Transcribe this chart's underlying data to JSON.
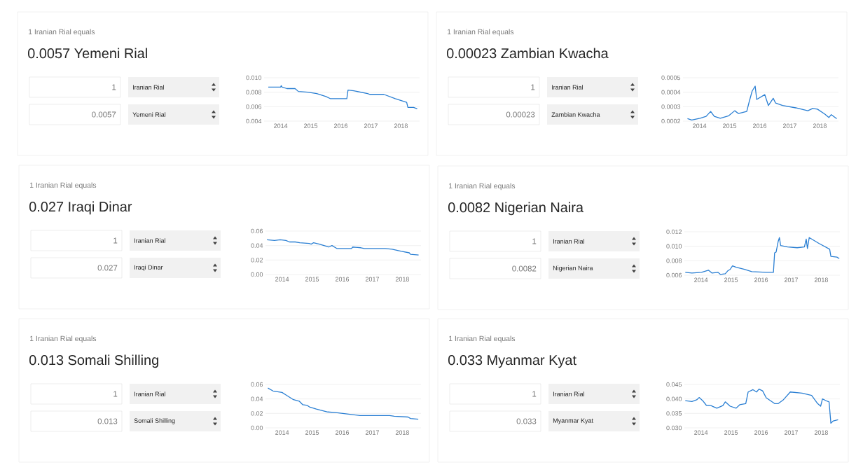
{
  "chart_data": [
    {
      "type": "line",
      "annotations": [
        "1 Iranian Rial equals",
        "0.0057 Yemeni Rial",
        "1",
        "Iranian Rial",
        "0.0057",
        "Yemeni Rial"
      ],
      "color": "#2a7fd3",
      "grid": "y",
      "xlim": [
        2013.45,
        2018.62
      ],
      "ylim": [
        0.004,
        0.01
      ],
      "xticks": [
        2014,
        2015,
        2016,
        2017,
        2018
      ],
      "yticks": [
        0.004,
        0.006,
        0.008,
        {
          "value": 0.01,
          "label": "0.010"
        }
      ],
      "x": [
        2013.59,
        2014.0,
        2014.02,
        2014.05,
        2014.21,
        2014.48,
        2014.59,
        2014.9,
        2015.2,
        2015.51,
        2015.66,
        2016.2,
        2016.24,
        2016.43,
        2016.89,
        2016.97,
        2017.43,
        2017.81,
        2018.19,
        2018.23,
        2018.42,
        2018.54
      ],
      "values": [
        0.0087,
        0.0087,
        0.0089,
        0.0087,
        0.0085,
        0.0085,
        0.0081,
        0.008,
        0.0078,
        0.0074,
        0.0071,
        0.0071,
        0.0083,
        0.0082,
        0.0078,
        0.0077,
        0.0077,
        0.0071,
        0.0066,
        0.0059,
        0.0059,
        0.0057
      ]
    },
    {
      "type": "line",
      "annotations": [
        "1 Iranian Rial equals",
        "0.00023 Zambian Kwacha",
        "1",
        "Iranian Rial",
        "0.00023",
        "Zambian Kwacha"
      ],
      "color": "#2a7fd3",
      "grid": "y",
      "xlim": [
        2013.45,
        2018.62
      ],
      "ylim": [
        0.0002,
        0.0005
      ],
      "xticks": [
        2014,
        2015,
        2016,
        2017,
        2018
      ],
      "yticks": [
        0.0002,
        0.0003,
        0.0004,
        0.0005
      ],
      "x": [
        2013.6,
        2013.74,
        2014.02,
        2014.22,
        2014.37,
        2014.49,
        2014.69,
        2014.97,
        2015.17,
        2015.29,
        2015.57,
        2015.65,
        2015.75,
        2015.85,
        2015.9,
        2016.17,
        2016.29,
        2016.45,
        2016.53,
        2016.76,
        2017.2,
        2017.6,
        2017.76,
        2017.92,
        2018.16,
        2018.3,
        2018.38,
        2018.56
      ],
      "values": [
        0.000217,
        0.000208,
        0.00022,
        0.000233,
        0.000267,
        0.000233,
        0.00022,
        0.000237,
        0.000272,
        0.000253,
        0.000267,
        0.000333,
        0.000408,
        0.000442,
        0.00035,
        0.000383,
        0.000308,
        0.000358,
        0.000325,
        0.000308,
        0.000292,
        0.000272,
        0.000288,
        0.000283,
        0.00025,
        0.000225,
        0.000245,
        0.000217
      ]
    },
    {
      "type": "line",
      "annotations": [
        "1 Iranian Rial equals",
        "0.027 Iraqi Dinar",
        "1",
        "Iranian Rial",
        "0.027",
        "Iraqi Dinar"
      ],
      "color": "#2a7fd3",
      "grid": "y",
      "xlim": [
        2013.45,
        2018.62
      ],
      "ylim": [
        0.0,
        0.06
      ],
      "xticks": [
        2014,
        2015,
        2016,
        2017,
        2018
      ],
      "yticks": [
        {
          "value": 0.0,
          "label": "0.00"
        },
        0.02,
        0.04,
        0.06
      ],
      "x": [
        2013.5,
        2013.75,
        2013.94,
        2014.13,
        2014.25,
        2014.44,
        2014.59,
        2014.9,
        2014.97,
        2015.05,
        2015.24,
        2015.55,
        2015.66,
        2015.82,
        2016.31,
        2016.35,
        2016.62,
        2016.74,
        2017.35,
        2017.43,
        2017.66,
        2017.97,
        2018.23,
        2018.27,
        2018.54
      ],
      "values": [
        0.048,
        0.047,
        0.048,
        0.047,
        0.045,
        0.045,
        0.044,
        0.043,
        0.042,
        0.044,
        0.042,
        0.038,
        0.04,
        0.036,
        0.036,
        0.038,
        0.037,
        0.036,
        0.036,
        0.036,
        0.035,
        0.032,
        0.03,
        0.028,
        0.027
      ]
    },
    {
      "type": "line",
      "annotations": [
        "1 Iranian Rial equals",
        "0.0082 Nigerian Naira",
        "1",
        "Iranian Rial",
        "0.0082",
        "Nigerian Naira"
      ],
      "color": "#2a7fd3",
      "grid": "y",
      "xlim": [
        2013.45,
        2018.62
      ],
      "ylim": [
        0.006,
        0.012
      ],
      "xticks": [
        2014,
        2015,
        2016,
        2017,
        2018
      ],
      "yticks": [
        0.006,
        0.008,
        {
          "value": 0.01,
          "label": "0.010"
        },
        0.012
      ],
      "x": [
        2013.48,
        2013.7,
        2014.02,
        2014.25,
        2014.37,
        2014.57,
        2014.65,
        2014.81,
        2014.89,
        2014.97,
        2015.05,
        2015.17,
        2015.45,
        2015.69,
        2016.17,
        2016.41,
        2016.45,
        2016.5,
        2016.57,
        2016.61,
        2016.65,
        2016.88,
        2017.2,
        2017.44,
        2017.5,
        2017.54,
        2017.6,
        2017.92,
        2018.28,
        2018.32,
        2018.52,
        2018.6
      ],
      "values": [
        0.0064,
        0.0063,
        0.0064,
        0.0067,
        0.0063,
        0.0064,
        0.0061,
        0.0062,
        0.0066,
        0.0068,
        0.0073,
        0.0071,
        0.0068,
        0.0065,
        0.0064,
        0.0064,
        0.0091,
        0.0092,
        0.0107,
        0.0112,
        0.0101,
        0.0099,
        0.0098,
        0.0099,
        0.011,
        0.0097,
        0.0112,
        0.0104,
        0.0096,
        0.0086,
        0.0085,
        0.0083
      ]
    },
    {
      "type": "line",
      "annotations": [
        "1 Iranian Rial equals",
        "0.013 Somali Shilling",
        "1",
        "Iranian Rial",
        "0.013",
        "Somali Shilling"
      ],
      "color": "#2a7fd3",
      "grid": "y",
      "xlim": [
        2013.45,
        2018.62
      ],
      "ylim": [
        0.0,
        0.06
      ],
      "xticks": [
        2014,
        2015,
        2016,
        2017,
        2018
      ],
      "yticks": [
        {
          "value": 0.0,
          "label": "0.00"
        },
        0.02,
        0.04,
        0.06
      ],
      "x": [
        2013.53,
        2013.7,
        2014.0,
        2014.15,
        2014.38,
        2014.57,
        2014.69,
        2014.84,
        2014.91,
        2015.14,
        2015.52,
        2015.83,
        2016.21,
        2016.59,
        2017.05,
        2017.58,
        2017.73,
        2018.19,
        2018.27,
        2018.53
      ],
      "values": [
        0.055,
        0.051,
        0.049,
        0.045,
        0.039,
        0.037,
        0.032,
        0.031,
        0.029,
        0.026,
        0.022,
        0.021,
        0.019,
        0.017,
        0.017,
        0.017,
        0.016,
        0.015,
        0.013,
        0.012
      ]
    },
    {
      "type": "line",
      "annotations": [
        "1 Iranian Rial equals",
        "0.033 Myanmar Kyat",
        "1",
        "Iranian Rial",
        "0.033",
        "Myanmar Kyat"
      ],
      "color": "#2a7fd3",
      "grid": "y",
      "xlim": [
        2013.45,
        2018.62
      ],
      "ylim": [
        0.03,
        0.045
      ],
      "xticks": [
        2014,
        2015,
        2016,
        2017,
        2018
      ],
      "yticks": [
        {
          "value": 0.03,
          "label": "0.030"
        },
        0.035,
        {
          "value": 0.04,
          "label": "0.040"
        },
        0.045
      ],
      "x": [
        2013.48,
        2013.7,
        2013.86,
        2013.94,
        2014.06,
        2014.18,
        2014.33,
        2014.53,
        2014.73,
        2014.81,
        2014.97,
        2015.17,
        2015.29,
        2015.49,
        2015.57,
        2015.73,
        2015.85,
        2015.93,
        2016.05,
        2016.17,
        2016.45,
        2016.57,
        2016.73,
        2016.97,
        2017.36,
        2017.68,
        2017.88,
        2017.98,
        2018.04,
        2018.2,
        2018.26,
        2018.32,
        2018.4,
        2018.56
      ],
      "values": [
        0.0394,
        0.0391,
        0.0397,
        0.0405,
        0.0394,
        0.0378,
        0.0377,
        0.0368,
        0.0377,
        0.039,
        0.0375,
        0.0368,
        0.038,
        0.0384,
        0.0424,
        0.0432,
        0.0424,
        0.0434,
        0.0428,
        0.0404,
        0.0384,
        0.0384,
        0.0396,
        0.0424,
        0.042,
        0.0412,
        0.0384,
        0.0375,
        0.04,
        0.0392,
        0.039,
        0.0316,
        0.0324,
        0.0328
      ]
    }
  ]
}
